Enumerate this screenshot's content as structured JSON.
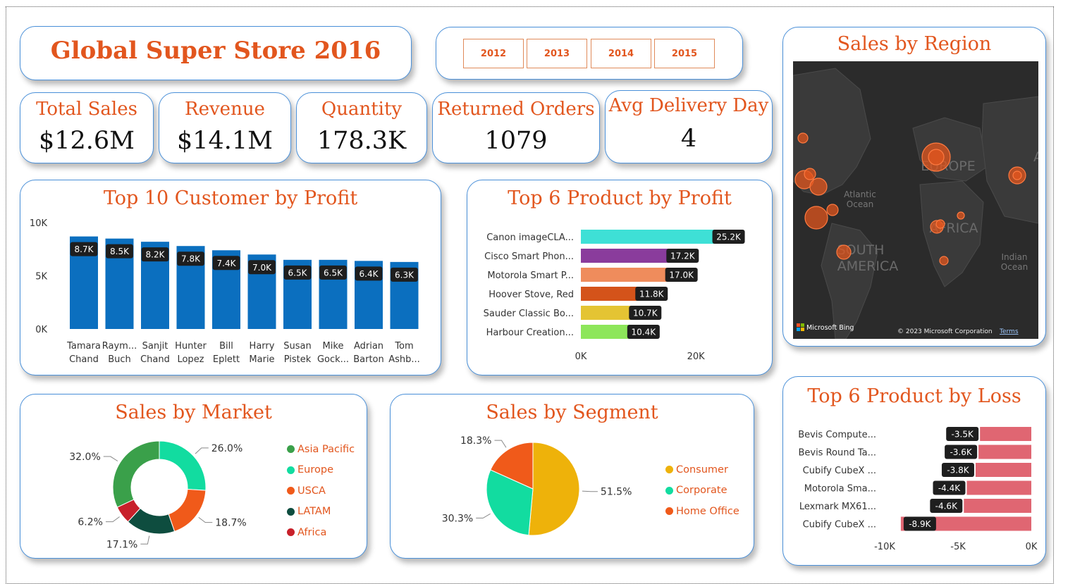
{
  "header": {
    "title": "Global Super Store 2016"
  },
  "years": [
    "2012",
    "2013",
    "2014",
    "2015"
  ],
  "kpis": [
    {
      "label": "Total Sales",
      "value": "$12.6M"
    },
    {
      "label": "Revenue",
      "value": "$14.1M"
    },
    {
      "label": "Quantity",
      "value": "178.3K"
    },
    {
      "label": "Returned Orders",
      "value": "1079"
    },
    {
      "label": "Avg Delivery Day",
      "value": "4"
    }
  ],
  "map": {
    "title": "Sales by Region",
    "labels": {
      "europe": "EUROPE",
      "africa": "AFRICA",
      "south_america_1": "SOUTH",
      "south_america_2": "AMERICA",
      "atlantic_1": "Atlantic",
      "atlantic_2": "Ocean",
      "indian_1": "Indian",
      "indian_2": "Ocean",
      "a_edge": "A"
    },
    "bing": "Microsoft Bing",
    "copyright": "© 2023 Microsoft Corporation",
    "terms": "Terms",
    "bubble_color": "#e2561e"
  },
  "chart_data": [
    {
      "id": "top_customers",
      "type": "bar",
      "title": "Top 10 Customer by Profit",
      "categories": [
        [
          "Tamara",
          "Chand"
        ],
        [
          "Raym...",
          "Buch"
        ],
        [
          "Sanjit",
          "Chand"
        ],
        [
          "Hunter",
          "Lopez"
        ],
        [
          "Bill",
          "Eplett"
        ],
        [
          "Harry",
          "Marie"
        ],
        [
          "Susan",
          "Pistek"
        ],
        [
          "Mike",
          "Gock..."
        ],
        [
          "Adrian",
          "Barton"
        ],
        [
          "Tom",
          "Ashb..."
        ]
      ],
      "values": [
        8.7,
        8.5,
        8.2,
        7.8,
        7.4,
        7.0,
        6.5,
        6.5,
        6.4,
        6.3
      ],
      "data_labels": [
        "8.7K",
        "8.5K",
        "8.2K",
        "7.8K",
        "7.4K",
        "7.0K",
        "6.5K",
        "6.5K",
        "6.4K",
        "6.3K"
      ],
      "yticks": [
        "0K",
        "5K",
        "10K"
      ],
      "ylim": [
        0,
        10
      ],
      "color": "#0b6fbf"
    },
    {
      "id": "top_products_profit",
      "type": "bar",
      "orientation": "horizontal",
      "title": "Top 6 Product by Profit",
      "categories": [
        "Canon imageCLA...",
        "Cisco Smart Phon...",
        "Motorola Smart P...",
        "Hoover Stove, Red",
        "Sauder Classic Bo...",
        "Harbour Creation..."
      ],
      "values": [
        25.2,
        17.2,
        17.0,
        11.8,
        10.7,
        10.4
      ],
      "data_labels": [
        "25.2K",
        "17.2K",
        "17.0K",
        "11.8K",
        "10.7K",
        "10.4K"
      ],
      "colors": [
        "#3ee0d6",
        "#8a3c9c",
        "#ef8c5c",
        "#d4531a",
        "#e4c433",
        "#8de65a"
      ],
      "xticks": [
        "0K",
        "20K"
      ],
      "xlim": [
        0,
        25.5
      ]
    },
    {
      "id": "sales_by_market",
      "type": "pie",
      "donut": true,
      "title": "Sales by Market",
      "categories": [
        "Asia Pacific",
        "Europe",
        "USCA",
        "LATAM",
        "Africa"
      ],
      "values": [
        32.0,
        26.0,
        18.7,
        17.1,
        6.2
      ],
      "data_labels": [
        "32.0%",
        "26.0%",
        "18.7%",
        "17.1%",
        "6.2%"
      ],
      "legend_order": [
        "Asia Pacific",
        "Europe",
        "USCA",
        "LATAM",
        "Africa"
      ],
      "colors": {
        "Asia Pacific": "#3aa04a",
        "Europe": "#12dca0",
        "USCA": "#f05a1a",
        "LATAM": "#0e4d3f",
        "Africa": "#c8202a"
      },
      "legend": "right"
    },
    {
      "id": "sales_by_segment",
      "type": "pie",
      "title": "Sales by Segment",
      "categories": [
        "Consumer",
        "Corporate",
        "Home Office"
      ],
      "values": [
        51.5,
        30.3,
        18.3
      ],
      "data_labels": [
        "51.5%",
        "30.3%",
        "18.3%"
      ],
      "colors": [
        "#eeb20a",
        "#12dca0",
        "#f05a1a"
      ],
      "legend": "right"
    },
    {
      "id": "top_products_loss",
      "type": "bar",
      "orientation": "horizontal",
      "title": "Top 6 Product by Loss",
      "categories": [
        "Bevis Compute...",
        "Bevis Round Ta...",
        "Cubify CubeX ...",
        "Motorola Sma...",
        "Lexmark MX61...",
        "Cubify CubeX ..."
      ],
      "values": [
        -3.5,
        -3.6,
        -3.8,
        -4.4,
        -4.6,
        -8.9
      ],
      "data_labels": [
        "-3.5K",
        "-3.6K",
        "-3.8K",
        "-4.4K",
        "-4.6K",
        "-8.9K"
      ],
      "color": "#e06672",
      "xticks": [
        "-10K",
        "-5K",
        "0K"
      ],
      "xlim": [
        -10,
        0
      ]
    }
  ]
}
